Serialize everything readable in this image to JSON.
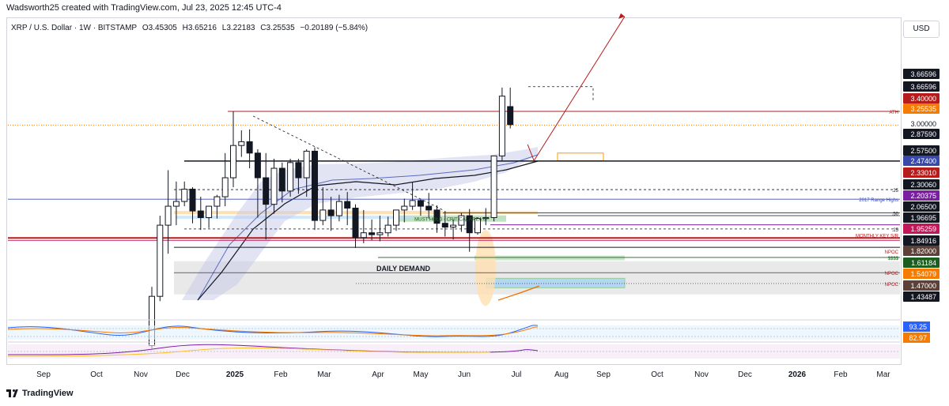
{
  "header": {
    "attribution": "Wadsworth25 created with TradingView.com, Jul 23, 2025 12:45 UTC-4"
  },
  "symbol": {
    "name": "XRP / U.S. Dollar · 1W · BITSTAMP",
    "open": "O3.45305",
    "high": "H3.65216",
    "low": "L3.22183",
    "close": "C3.25535",
    "change": "−0.20189 (−5.84%)"
  },
  "currency_button": "USD",
  "footer": {
    "brand": "TradingView"
  },
  "colors": {
    "bull": "#ffffff",
    "bear": "#131722",
    "line_red": "#b71c1c",
    "line_purple": "#7b1fa2",
    "line_blue": "#3f51b5",
    "arrow": "#b71c1c",
    "green_zone": "#a5d6a7",
    "blue_zone": "#90caf9",
    "orange": "#ff9800"
  },
  "chart_data": {
    "type": "candlestick",
    "x_axis_labels": [
      "Sep",
      "Oct",
      "Nov",
      "Dec",
      "2025",
      "Feb",
      "Mar",
      "Apr",
      "May",
      "Jun",
      "Jul",
      "Aug",
      "Sep",
      "Oct",
      "Nov",
      "Dec",
      "2026",
      "Feb",
      "Mar"
    ],
    "bold_x_labels": [
      "2025",
      "2026"
    ],
    "price_labels": [
      {
        "text": "3.66596",
        "color": "#131722",
        "text_color": "#ffffff"
      },
      {
        "text": "3.66596",
        "color": "#131722",
        "text_color": "#ffffff"
      },
      {
        "text": "3.40000",
        "color": "#b71c1c",
        "text_color": "#ffffff"
      },
      {
        "text": "3.25535",
        "color": "#f57c00",
        "text_color": "#ffffff"
      },
      {
        "text": "3.00000",
        "color": "#ffffff",
        "text_color": "#131722"
      },
      {
        "text": "2.87590",
        "color": "#131722",
        "text_color": "#ffffff"
      },
      {
        "text": "2.57500",
        "color": "#131722",
        "text_color": "#ffffff"
      },
      {
        "text": "2.47400",
        "color": "#3949ab",
        "text_color": "#ffffff"
      },
      {
        "text": "2.33010",
        "color": "#b71c1c",
        "text_color": "#ffffff"
      },
      {
        "text": "2.30060",
        "color": "#131722",
        "text_color": "#ffffff"
      },
      {
        "text": "2.20375",
        "color": "#7b1fa2",
        "text_color": "#ffffff"
      },
      {
        "text": "2.06500",
        "color": "#131722",
        "text_color": "#ffffff"
      },
      {
        "text": "1.96695",
        "color": "#131722",
        "text_color": "#ffffff"
      },
      {
        "text": "1.95259",
        "color": "#c2185b",
        "text_color": "#ffffff"
      },
      {
        "text": "1.84916",
        "color": "#131722",
        "text_color": "#ffffff"
      },
      {
        "text": "1.82000",
        "color": "#5d4037",
        "text_color": "#ffffff"
      },
      {
        "text": "1.61184",
        "color": "#1b5e20",
        "text_color": "#ffffff"
      },
      {
        "text": "1.54079",
        "color": "#f57c00",
        "text_color": "#ffffff"
      },
      {
        "text": "1.47000",
        "color": "#5d4037",
        "text_color": "#ffffff"
      },
      {
        "text": "1.43487",
        "color": "#131722",
        "text_color": "#ffffff"
      }
    ],
    "annotations": [
      {
        "text": "ATH",
        "color": "#b71c1c"
      },
      {
        "text": ".25",
        "color": "#131722"
      },
      {
        "text": "2017 Range Highs",
        "color": "#3949ab"
      },
      {
        "text": ".50",
        "color": "#131722"
      },
      {
        "text": ".25",
        "color": "#131722"
      },
      {
        "text": "MONTHLY KEY S/R",
        "color": "#b71c1c"
      },
      {
        "text": "NPOC",
        "color": "#b71c1c"
      },
      {
        "text": "$$$$",
        "color": "#1b5e20"
      },
      {
        "text": "NPOC",
        "color": "#b71c1c"
      },
      {
        "text": "NPOC",
        "color": "#b71c1c"
      },
      {
        "text": "DAILY DEMAND",
        "color": "#131722"
      },
      {
        "text": "MUST HOLD - CRITICAL AREA of",
        "color": "#1b5e20"
      }
    ],
    "weekly_candles": [
      {
        "o": 0.93,
        "h": 1.55,
        "c": 1.45,
        "l": 0.9
      },
      {
        "o": 1.45,
        "h": 2.3,
        "c": 2.2,
        "l": 1.4
      },
      {
        "o": 2.2,
        "h": 2.78,
        "c": 2.4,
        "l": 1.9
      },
      {
        "o": 2.4,
        "h": 2.66,
        "c": 2.45,
        "l": 2.2
      },
      {
        "o": 2.45,
        "h": 2.66,
        "c": 2.58,
        "l": 2.4
      },
      {
        "o": 2.58,
        "h": 2.6,
        "c": 2.35,
        "l": 2.22
      },
      {
        "o": 2.35,
        "h": 2.5,
        "c": 2.28,
        "l": 2.15
      },
      {
        "o": 2.28,
        "h": 2.36,
        "c": 2.4,
        "l": 2.17
      },
      {
        "o": 2.4,
        "h": 2.52,
        "c": 2.5,
        "l": 2.27
      },
      {
        "o": 2.5,
        "h": 2.96,
        "c": 2.7,
        "l": 2.4
      },
      {
        "o": 2.7,
        "h": 3.4,
        "c": 3.04,
        "l": 2.6
      },
      {
        "o": 3.04,
        "h": 3.2,
        "c": 3.08,
        "l": 2.92
      },
      {
        "o": 3.08,
        "h": 3.21,
        "c": 2.96,
        "l": 2.8
      },
      {
        "o": 2.96,
        "h": 3.0,
        "c": 2.7,
        "l": 2.28
      },
      {
        "o": 2.7,
        "h": 2.96,
        "c": 2.42,
        "l": 2.05
      },
      {
        "o": 2.42,
        "h": 2.9,
        "c": 2.8,
        "l": 2.32
      },
      {
        "o": 2.8,
        "h": 2.86,
        "c": 2.56,
        "l": 2.44
      },
      {
        "o": 2.56,
        "h": 2.9,
        "c": 2.86,
        "l": 2.5
      },
      {
        "o": 2.86,
        "h": 2.9,
        "c": 2.7,
        "l": 2.53
      },
      {
        "o": 2.7,
        "h": 3.0,
        "c": 2.98,
        "l": 2.5
      },
      {
        "o": 2.98,
        "h": 3.02,
        "c": 2.25,
        "l": 2.15
      },
      {
        "o": 2.25,
        "h": 2.6,
        "c": 2.36,
        "l": 2.2
      },
      {
        "o": 2.36,
        "h": 2.5,
        "c": 2.3,
        "l": 2.14
      },
      {
        "o": 2.3,
        "h": 2.52,
        "c": 2.45,
        "l": 2.24
      },
      {
        "o": 2.45,
        "h": 2.55,
        "c": 2.38,
        "l": 2.2
      },
      {
        "o": 2.38,
        "h": 2.42,
        "c": 2.07,
        "l": 1.96
      },
      {
        "o": 2.07,
        "h": 2.36,
        "c": 2.12,
        "l": 2.01
      },
      {
        "o": 2.12,
        "h": 2.26,
        "c": 2.1,
        "l": 2.04
      },
      {
        "o": 2.1,
        "h": 2.3,
        "c": 2.12,
        "l": 2.03
      },
      {
        "o": 2.12,
        "h": 2.29,
        "c": 2.2,
        "l": 2.08
      },
      {
        "o": 2.2,
        "h": 2.34,
        "c": 2.36,
        "l": 2.14
      },
      {
        "o": 2.36,
        "h": 2.48,
        "c": 2.4,
        "l": 2.23
      },
      {
        "o": 2.4,
        "h": 2.65,
        "c": 2.46,
        "l": 2.36
      },
      {
        "o": 2.46,
        "h": 2.47,
        "c": 2.4,
        "l": 2.3
      },
      {
        "o": 2.4,
        "h": 2.54,
        "c": 2.36,
        "l": 2.27
      },
      {
        "o": 2.36,
        "h": 2.41,
        "c": 2.22,
        "l": 2.12
      },
      {
        "o": 2.22,
        "h": 2.35,
        "c": 2.18,
        "l": 2.08
      },
      {
        "o": 2.18,
        "h": 2.26,
        "c": 2.2,
        "l": 2.05
      },
      {
        "o": 2.2,
        "h": 2.33,
        "c": 2.3,
        "l": 2.13
      },
      {
        "o": 2.3,
        "h": 2.37,
        "c": 2.12,
        "l": 1.92
      },
      {
        "o": 2.12,
        "h": 2.28,
        "c": 2.27,
        "l": 2.1
      },
      {
        "o": 2.27,
        "h": 2.38,
        "c": 2.28,
        "l": 2.2
      },
      {
        "o": 2.28,
        "h": 2.93,
        "c": 2.93,
        "l": 2.24
      },
      {
        "o": 2.93,
        "h": 3.65,
        "c": 3.56,
        "l": 2.88
      },
      {
        "o": 3.45,
        "h": 3.65,
        "c": 3.26,
        "l": 3.22
      }
    ],
    "target_arrow": {
      "from_value": 2.88,
      "to_value": 4.4
    },
    "osc1_labels": [
      {
        "text": "93.25",
        "color": "#2962ff"
      },
      {
        "text": "82.97",
        "color": "#f57c00"
      }
    ]
  }
}
